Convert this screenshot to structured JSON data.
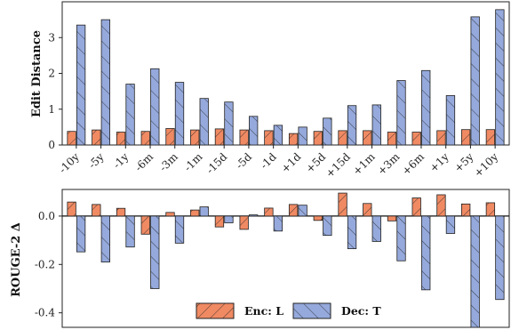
{
  "colors": {
    "enc": "#f08a63",
    "dec": "#95a9dc",
    "edge": "#222222"
  },
  "chart_data": [
    {
      "type": "bar",
      "ylabel": "Edit Distance",
      "ylim": [
        0,
        4
      ],
      "yticks": [
        0,
        1,
        2,
        3
      ],
      "categories": [
        "-10y",
        "-5y",
        "-1y",
        "-6m",
        "-3m",
        "-1m",
        "-15d",
        "-5d",
        "-1d",
        "+1d",
        "+5d",
        "+15d",
        "+1m",
        "+3m",
        "+6m",
        "+1y",
        "+5y",
        "+10y"
      ],
      "series": [
        {
          "name": "Enc: L",
          "values": [
            0.38,
            0.42,
            0.36,
            0.38,
            0.46,
            0.42,
            0.45,
            0.42,
            0.4,
            0.32,
            0.38,
            0.4,
            0.4,
            0.36,
            0.36,
            0.4,
            0.43,
            0.43
          ]
        },
        {
          "name": "Dec: T",
          "values": [
            3.35,
            3.5,
            1.7,
            2.13,
            1.75,
            1.3,
            1.2,
            0.8,
            0.55,
            0.5,
            0.75,
            1.1,
            1.12,
            1.8,
            2.08,
            1.38,
            3.58,
            3.78
          ]
        }
      ],
      "grid": false
    },
    {
      "type": "bar",
      "ylabel": "ROUGE-2 Δ",
      "ylim": [
        -0.46,
        0.11
      ],
      "yticks": [
        0.0,
        -0.2,
        -0.4
      ],
      "ytick_labels": [
        "0.0",
        "-0.2",
        "-0.4"
      ],
      "categories": [
        "-10y",
        "-5y",
        "-1y",
        "-6m",
        "-3m",
        "-1m",
        "-15d",
        "-5d",
        "-1d",
        "+1d",
        "+5d",
        "+15d",
        "+1m",
        "+3m",
        "+6m",
        "+1y",
        "+5y",
        "+10y"
      ],
      "series": [
        {
          "name": "Enc: L",
          "values": [
            0.058,
            0.048,
            0.032,
            -0.075,
            0.015,
            0.025,
            -0.045,
            -0.055,
            0.033,
            0.048,
            -0.018,
            0.095,
            0.052,
            -0.02,
            0.075,
            0.088,
            0.05,
            0.055
          ]
        },
        {
          "name": "Dec: T",
          "values": [
            -0.148,
            -0.19,
            -0.128,
            -0.3,
            -0.112,
            0.038,
            -0.028,
            0.005,
            -0.062,
            0.045,
            -0.08,
            -0.135,
            -0.105,
            -0.185,
            -0.305,
            -0.072,
            -0.46,
            -0.345
          ]
        }
      ],
      "legend": {
        "position": "bottom-center"
      },
      "grid": false
    }
  ],
  "legend": {
    "enc_label": "Enc: L",
    "dec_label": "Dec: T"
  }
}
